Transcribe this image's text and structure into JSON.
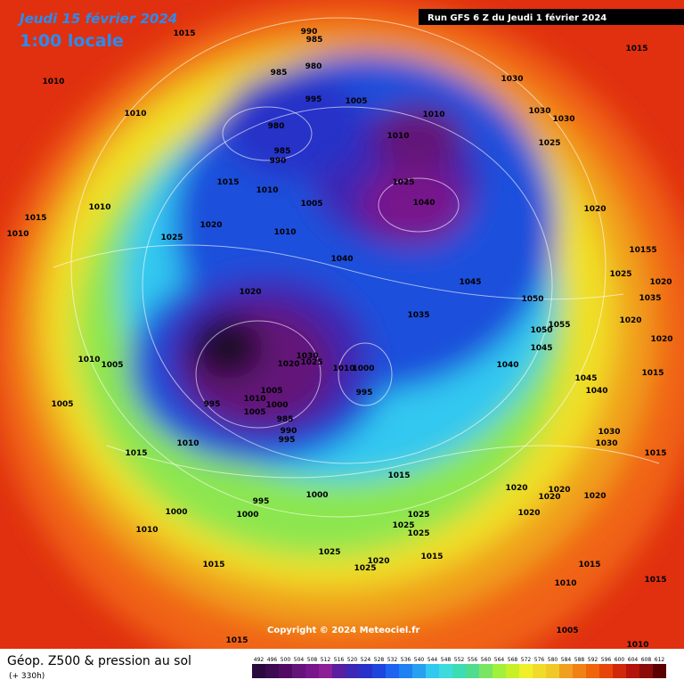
{
  "header": {
    "date": "Jeudi 15 février 2024",
    "time": "1:00 locale",
    "run": "Run GFS 6 Z du Jeudi 1 février 2024"
  },
  "copyright": "Copyright © 2024 Meteociel.fr",
  "footer": {
    "title": "Géop. Z500 & pression au sol",
    "lead": "(+ 330h)"
  },
  "colorbar": {
    "labels": [
      492,
      496,
      500,
      504,
      508,
      512,
      516,
      520,
      524,
      528,
      532,
      536,
      540,
      544,
      548,
      552,
      556,
      560,
      564,
      568,
      572,
      576,
      580,
      584,
      588,
      592,
      596,
      600,
      604,
      608,
      612
    ],
    "colors": [
      "#2a0a3c",
      "#3c0a50",
      "#500a64",
      "#641478",
      "#78148c",
      "#8c1e96",
      "#5a1ea0",
      "#3c28b4",
      "#2832c8",
      "#1e46dc",
      "#1e64f0",
      "#1e82f0",
      "#28a0f0",
      "#32c8f0",
      "#3cdcdc",
      "#3cdcb4",
      "#50dc8c",
      "#78e664",
      "#a0f03c",
      "#c8f028",
      "#f0f028",
      "#f0dc28",
      "#f0c828",
      "#f0a01e",
      "#f08214",
      "#f0640a",
      "#e6460a",
      "#d2280a",
      "#b4140a",
      "#8c0a0a",
      "#5a0000"
    ]
  },
  "isobars": [
    1015,
    1010,
    990,
    985,
    980,
    985,
    1010,
    995,
    1005,
    1030,
    1015,
    1010,
    1030,
    1030,
    980,
    1010,
    985,
    990,
    1025,
    1025,
    1015,
    1010,
    1040,
    1005,
    1020,
    1010,
    1015,
    1010,
    1020,
    1025,
    1010,
    1040,
    10155,
    1045,
    1025,
    1020,
    1020,
    1050,
    1035,
    1035,
    1055,
    1020,
    1050,
    1020,
    1045,
    1030,
    1025,
    1020,
    1040,
    1010,
    1000,
    1010,
    1005,
    1015,
    995,
    1005,
    1010,
    1045,
    1040,
    995,
    1000,
    1005,
    985,
    990,
    995,
    1005,
    1010,
    1030,
    1030,
    1015,
    1015,
    1015,
    1020,
    1020,
    1020,
    1020,
    995,
    1000,
    1000,
    1000,
    1025,
    1020,
    1010,
    1025,
    1025,
    1025,
    1015,
    1020,
    1025,
    1015,
    1015,
    1010,
    1015,
    1005,
    1015,
    1010
  ]
}
